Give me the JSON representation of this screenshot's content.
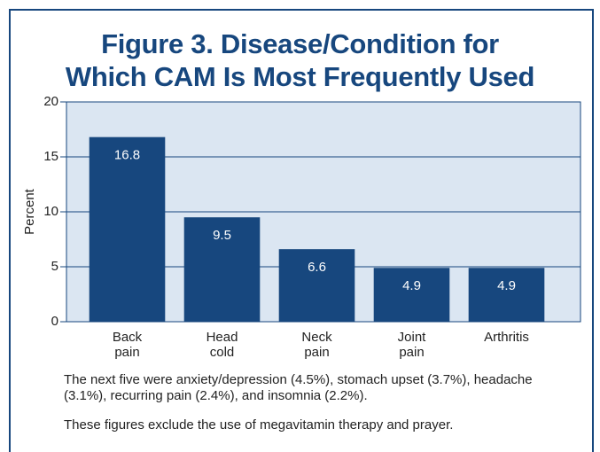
{
  "chart_data": {
    "type": "bar",
    "title": [
      "Figure 3. Disease/Condition for",
      "Which CAM Is Most Frequently Used"
    ],
    "y_label": "Percent",
    "categories": [
      "Back pain",
      "Head cold",
      "Neck pain",
      "Joint pain",
      "Arthritis"
    ],
    "values": [
      16.8,
      9.5,
      6.6,
      4.9,
      4.9
    ],
    "color": "#17477e",
    "ylim": [
      0,
      20
    ],
    "yticks": [
      0,
      5,
      10,
      15,
      20
    ],
    "grid": true,
    "notes": [
      "The next five were anxiety/depression (4.5%), stomach upset (3.7%), headache (3.1%), recurring pain (2.4%), and insomnia (2.2%).",
      "These figures exclude the use of megavitamin therapy and prayer."
    ]
  }
}
